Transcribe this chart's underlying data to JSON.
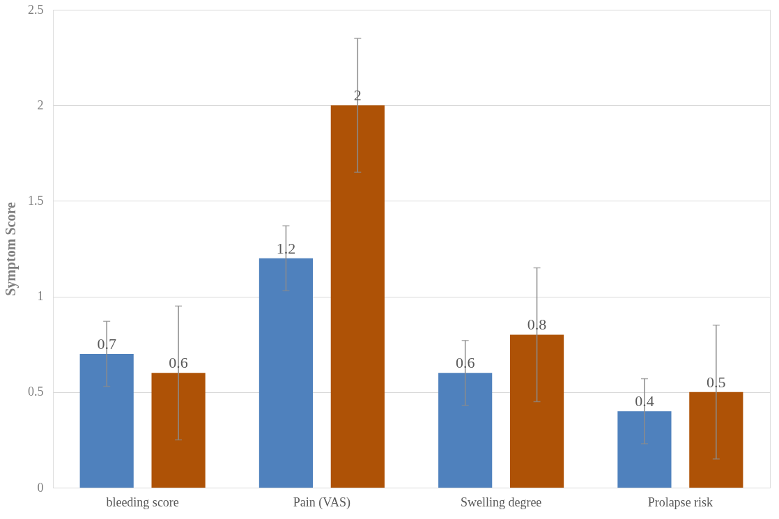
{
  "chart_data": {
    "type": "bar",
    "ylabel": "Symptom Score",
    "categories": [
      "bleeding score",
      "Pain (VAS)",
      "Swelling degree",
      "Prolapse risk"
    ],
    "series": [
      {
        "color": "#4f81bd",
        "values": [
          0.7,
          1.2,
          0.6,
          0.4
        ],
        "errors": [
          0.17,
          0.17,
          0.17,
          0.17
        ]
      },
      {
        "color": "#ae5206",
        "values": [
          0.6,
          2,
          0.8,
          0.5
        ],
        "errors": [
          0.35,
          0.35,
          0.35,
          0.35
        ]
      }
    ],
    "ylim": [
      0,
      2.5
    ],
    "yticks": [
      0,
      0.5,
      1,
      1.5,
      2,
      2.5
    ],
    "grid": "y",
    "data_labels": true,
    "legend": false
  }
}
